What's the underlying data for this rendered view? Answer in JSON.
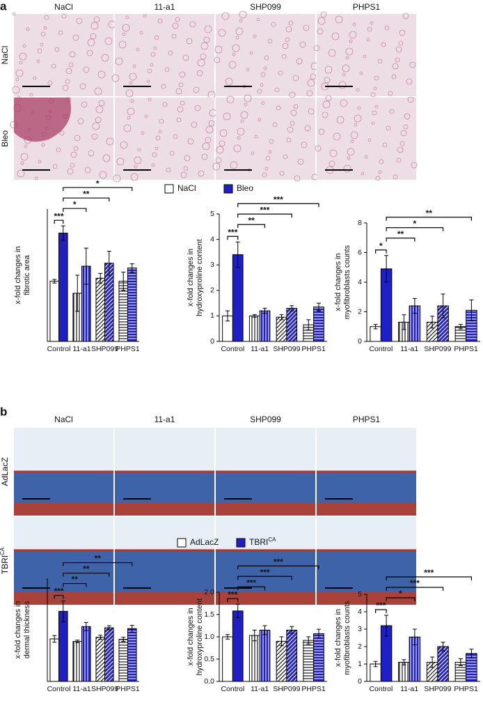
{
  "panels": [
    {
      "label": "a",
      "image_columns": [
        "NaCl",
        "11-a1",
        "SHP099",
        "PHPS1"
      ],
      "image_rows": [
        "NaCl",
        "Bleo"
      ]
    },
    {
      "label": "b",
      "image_columns": [
        "NaCl",
        "11-a1",
        "SHP099",
        "PHPS1"
      ],
      "image_rows": [
        "AdLacZ",
        {
          "text": "TBRI",
          "sup": "CA"
        }
      ]
    }
  ],
  "chart_data": [
    {
      "type": "bar",
      "y_label": [
        "x-fold changes in",
        "fibrotic area"
      ],
      "categories": [
        "Control",
        "11-a1",
        "SHP099",
        "PHPS1"
      ],
      "bar_patterns": [
        "none",
        "vertical",
        "diagonal",
        "horizontal"
      ],
      "ylim": [
        0,
        2.2
      ],
      "series": [
        {
          "name": "NaCl",
          "color": "#ffffff",
          "values": [
            1.0,
            0.8,
            1.05,
            1.0
          ],
          "errors": [
            0.03,
            0.3,
            0.08,
            0.15
          ]
        },
        {
          "name": "Bleo",
          "color": "#1f1fc8",
          "values": [
            1.8,
            1.25,
            1.3,
            1.22
          ],
          "errors": [
            0.12,
            0.3,
            0.2,
            0.07
          ]
        }
      ],
      "brackets": [
        {
          "label": "***",
          "from": [
            0,
            0
          ],
          "to": [
            0,
            1
          ]
        },
        {
          "label": "*",
          "from": [
            0,
            1
          ],
          "to": [
            1,
            1
          ]
        },
        {
          "label": "**",
          "from": [
            0,
            1
          ],
          "to": [
            2,
            1
          ]
        },
        {
          "label": "*",
          "from": [
            0,
            1
          ],
          "to": [
            3,
            1
          ]
        }
      ]
    },
    {
      "type": "bar",
      "y_label": [
        "x-fold changes in",
        "hydroxyproline content"
      ],
      "categories": [
        "Control",
        "11-a1",
        "SHP099",
        "PHPS1"
      ],
      "bar_patterns": [
        "none",
        "vertical",
        "diagonal",
        "horizontal"
      ],
      "ylim": [
        0,
        5
      ],
      "yticks": [
        0,
        1,
        2,
        3,
        4,
        5
      ],
      "series": [
        {
          "name": "NaCl",
          "color": "#ffffff",
          "values": [
            1.0,
            1.0,
            0.95,
            0.65
          ],
          "errors": [
            0.2,
            0.05,
            0.1,
            0.2
          ]
        },
        {
          "name": "Bleo",
          "color": "#1f1fc8",
          "values": [
            3.4,
            1.2,
            1.3,
            1.35
          ],
          "errors": [
            0.5,
            0.1,
            0.1,
            0.15
          ]
        }
      ],
      "brackets": [
        {
          "label": "***",
          "from": [
            0,
            0
          ],
          "to": [
            0,
            1
          ]
        },
        {
          "label": "**",
          "from": [
            0,
            1
          ],
          "to": [
            1,
            1
          ]
        },
        {
          "label": "***",
          "from": [
            0,
            1
          ],
          "to": [
            2,
            1
          ]
        },
        {
          "label": "***",
          "from": [
            0,
            1
          ],
          "to": [
            3,
            1
          ]
        }
      ]
    },
    {
      "type": "bar",
      "y_label": [
        "x-fold changes in",
        "myofibroblasts counts"
      ],
      "categories": [
        "Control",
        "11-a1",
        "SHP099",
        "PHPS1"
      ],
      "bar_patterns": [
        "none",
        "vertical",
        "diagonal",
        "horizontal"
      ],
      "ylim": [
        0,
        8
      ],
      "yticks": [
        0,
        2,
        4,
        6,
        8
      ],
      "series": [
        {
          "name": "NaCl",
          "color": "#ffffff",
          "values": [
            1.0,
            1.3,
            1.3,
            1.0
          ],
          "errors": [
            0.15,
            0.5,
            0.4,
            0.15
          ]
        },
        {
          "name": "Bleo",
          "color": "#1f1fc8",
          "values": [
            4.9,
            2.4,
            2.4,
            2.1
          ],
          "errors": [
            0.9,
            0.5,
            0.8,
            0.7
          ]
        }
      ],
      "brackets": [
        {
          "label": "*",
          "from": [
            0,
            0
          ],
          "to": [
            0,
            1
          ]
        },
        {
          "label": "**",
          "from": [
            0,
            1
          ],
          "to": [
            1,
            1
          ]
        },
        {
          "label": "*",
          "from": [
            0,
            1
          ],
          "to": [
            2,
            1
          ]
        },
        {
          "label": "**",
          "from": [
            0,
            1
          ],
          "to": [
            3,
            1
          ]
        }
      ]
    },
    {
      "type": "bar",
      "y_label": [
        "x-fold changes in",
        "dermal thickness"
      ],
      "categories": [
        "Control",
        "11-a1",
        "SHP099",
        "PHPS1"
      ],
      "bar_patterns": [
        "none",
        "vertical",
        "diagonal",
        "horizontal"
      ],
      "ylim": [
        0,
        2.5
      ],
      "series": [
        {
          "name": "AdLacZ",
          "color": "#ffffff",
          "values": [
            1.03,
            0.97,
            1.07,
            1.02
          ],
          "errors": [
            0.08,
            0.03,
            0.05,
            0.05
          ]
        },
        {
          "name": "TBRI",
          "name_sup": "CA",
          "color": "#1f1fc8",
          "values": [
            1.7,
            1.33,
            1.3,
            1.28
          ],
          "errors": [
            0.25,
            0.1,
            0.05,
            0.08
          ]
        }
      ],
      "brackets": [
        {
          "label": "***",
          "from": [
            0,
            0
          ],
          "to": [
            0,
            1
          ]
        },
        {
          "label": "**",
          "from": [
            0,
            1
          ],
          "to": [
            1,
            1
          ]
        },
        {
          "label": "**",
          "from": [
            0,
            1
          ],
          "to": [
            2,
            1
          ]
        },
        {
          "label": "**",
          "from": [
            0,
            1
          ],
          "to": [
            3,
            1
          ]
        }
      ]
    },
    {
      "type": "bar",
      "y_label": [
        "x-fold changes in",
        "hydroxyproline content"
      ],
      "categories": [
        "Control",
        "11-a1",
        "SHP099",
        "PHPS1"
      ],
      "bar_patterns": [
        "none",
        "vertical",
        "diagonal",
        "horizontal"
      ],
      "ylim": [
        0,
        2
      ],
      "yticks": [
        {
          "value": 0,
          "label": "0.0"
        },
        0.5,
        {
          "value": 1,
          "label": "1.0"
        },
        1.5,
        {
          "value": 2,
          "label": "2.0"
        }
      ],
      "series": [
        {
          "name": "AdLacZ",
          "color": "#ffffff",
          "values": [
            1.0,
            1.03,
            0.9,
            0.92
          ],
          "errors": [
            0.05,
            0.12,
            0.1,
            0.08
          ]
        },
        {
          "name": "TBRI",
          "name_sup": "CA",
          "color": "#1f1fc8",
          "values": [
            1.58,
            1.15,
            1.15,
            1.07
          ],
          "errors": [
            0.15,
            0.1,
            0.08,
            0.1
          ]
        }
      ],
      "brackets": [
        {
          "label": "***",
          "from": [
            0,
            0
          ],
          "to": [
            0,
            1
          ]
        },
        {
          "label": "***",
          "from": [
            0,
            1
          ],
          "to": [
            1,
            1
          ]
        },
        {
          "label": "***",
          "from": [
            0,
            1
          ],
          "to": [
            2,
            1
          ]
        },
        {
          "label": "***",
          "from": [
            0,
            1
          ],
          "to": [
            3,
            1
          ]
        }
      ]
    },
    {
      "type": "bar",
      "y_label": [
        "x-fold changes in",
        "myofibroblasts counts"
      ],
      "categories": [
        "Control",
        "11-a1",
        "SHP099",
        "PHPS1"
      ],
      "bar_patterns": [
        "none",
        "vertical",
        "diagonal",
        "horizontal"
      ],
      "ylim": [
        0,
        5
      ],
      "yticks": [
        0,
        1,
        2,
        3,
        4,
        5
      ],
      "series": [
        {
          "name": "AdLacZ",
          "color": "#ffffff",
          "values": [
            1.0,
            1.1,
            1.1,
            1.1
          ],
          "errors": [
            0.15,
            0.15,
            0.3,
            0.2
          ]
        },
        {
          "name": "TBRI",
          "name_sup": "CA",
          "color": "#1f1fc8",
          "values": [
            3.2,
            2.55,
            2.0,
            1.6
          ],
          "errors": [
            0.6,
            0.45,
            0.25,
            0.25
          ]
        }
      ],
      "brackets": [
        {
          "label": "***",
          "from": [
            0,
            0
          ],
          "to": [
            0,
            1
          ]
        },
        {
          "label": "*",
          "from": [
            0,
            1
          ],
          "to": [
            1,
            1
          ]
        },
        {
          "label": "***",
          "from": [
            0,
            1
          ],
          "to": [
            2,
            1
          ]
        },
        {
          "label": "***",
          "from": [
            0,
            1
          ],
          "to": [
            3,
            1
          ]
        }
      ]
    }
  ]
}
